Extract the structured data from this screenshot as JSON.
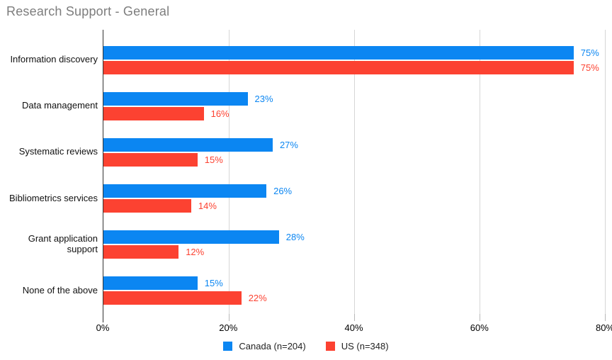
{
  "title": "Research Support - General",
  "colors": {
    "title_text": "#7d7d7d",
    "axis_line": "#333333",
    "gridline": "#d6d6d6",
    "tick_mark": "#b8b8b8",
    "category_text": "#111111",
    "canada_blue": "#0b86f2",
    "us_red": "#fc4231"
  },
  "chart_data": {
    "type": "bar",
    "orientation": "horizontal",
    "title": "Research Support - General",
    "categories": [
      "Information discovery",
      "Data management",
      "Systematic reviews",
      "Bibliometrics services",
      "Grant application support",
      "None of the above"
    ],
    "series": [
      {
        "name": "Canada (n=204)",
        "color": "#0b86f2",
        "values": [
          75,
          23,
          27,
          26,
          28,
          15
        ],
        "labels": [
          "75%",
          "23%",
          "27%",
          "26%",
          "28%",
          "15%"
        ]
      },
      {
        "name": "US (n=348)",
        "color": "#fc4231",
        "values": [
          75,
          16,
          15,
          14,
          12,
          22
        ],
        "labels": [
          "75%",
          "16%",
          "15%",
          "14%",
          "12%",
          "22%"
        ]
      }
    ],
    "xlabel": "",
    "ylabel": "",
    "xlim": [
      0,
      80
    ],
    "x_ticks": [
      {
        "value": 0,
        "label": "0%"
      },
      {
        "value": 20,
        "label": "20%"
      },
      {
        "value": 40,
        "label": "40%"
      },
      {
        "value": 60,
        "label": "60%"
      },
      {
        "value": 80,
        "label": "80%"
      }
    ],
    "grid": "vertical",
    "legend_position": "bottom"
  }
}
